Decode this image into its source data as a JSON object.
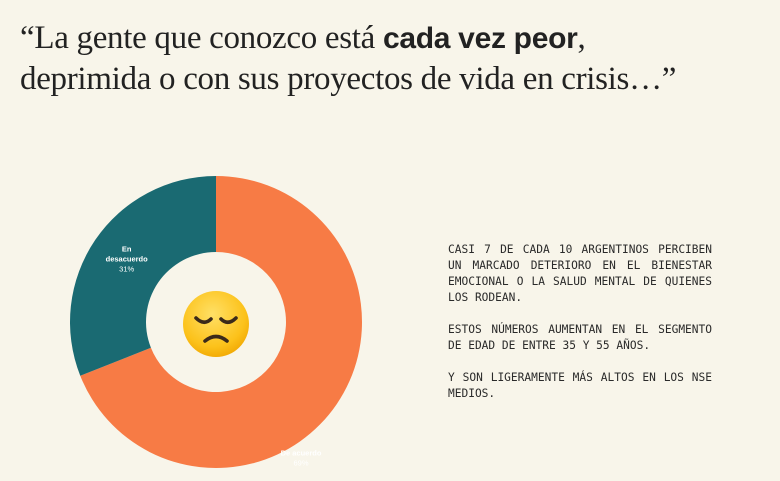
{
  "title": {
    "part1": "“La gente que conozco está ",
    "bold": "cada vez peor",
    "part2": ",",
    "line2": "deprimida o con sus proyectos de vida en crisis…”"
  },
  "chart_data": {
    "type": "pie",
    "categories": [
      "De acuerdo",
      "En desacuerdo"
    ],
    "values": [
      69,
      31
    ],
    "value_labels": [
      "69%",
      "31%"
    ],
    "colors": [
      "#f77b45",
      "#1a6a72"
    ]
  },
  "center_icon": "disappointed-face-emoji",
  "paragraphs": [
    "CASI 7 DE CADA 10 ARGENTINOS PERCIBEN UN MARCADO DETERIORO EN EL BIENESTAR EMOCIONAL O LA SALUD MENTAL DE QUIENES LOS RODEAN.",
    "ESTOS NÚMEROS AUMENTAN EN EL SEGMENTO DE EDAD DE ENTRE 35 Y 55 AÑOS.",
    "Y SON LIGERAMENTE MÁS ALTOS EN LOS NSE MEDIOS."
  ]
}
